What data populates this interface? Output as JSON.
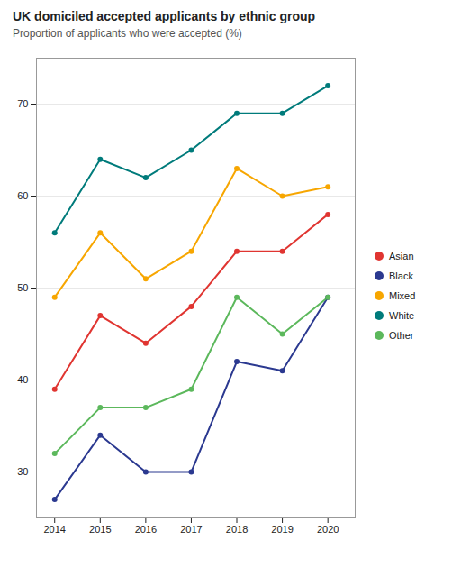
{
  "chart_data": {
    "type": "line",
    "title": "UK domiciled accepted applicants by ethnic group",
    "subtitle": "Proportion of applicants who were accepted (%)",
    "x": [
      2014,
      2015,
      2016,
      2017,
      2018,
      2019,
      2020
    ],
    "series": [
      {
        "name": "Asian",
        "color": "#e03531",
        "values": [
          39,
          47,
          44,
          48,
          54,
          54,
          58
        ]
      },
      {
        "name": "Black",
        "color": "#2b3990",
        "values": [
          27,
          34,
          30,
          30,
          42,
          41,
          49
        ]
      },
      {
        "name": "Mixed",
        "color": "#f7a600",
        "values": [
          49,
          56,
          51,
          54,
          63,
          60,
          61
        ]
      },
      {
        "name": "White",
        "color": "#007b7b",
        "values": [
          56,
          64,
          62,
          65,
          69,
          69,
          72
        ]
      },
      {
        "name": "Other",
        "color": "#5cb85c",
        "values": [
          32,
          37,
          37,
          39,
          49,
          45,
          49
        ]
      }
    ],
    "xlim": [
      2013.6,
      2020.6
    ],
    "xticks": [
      2014,
      2015,
      2016,
      2017,
      2018,
      2019,
      2020
    ],
    "ylim": [
      25,
      75
    ],
    "yticks": [
      30,
      40,
      50,
      60,
      70
    ],
    "grid": "y",
    "legend": "right",
    "marker": "circle"
  }
}
